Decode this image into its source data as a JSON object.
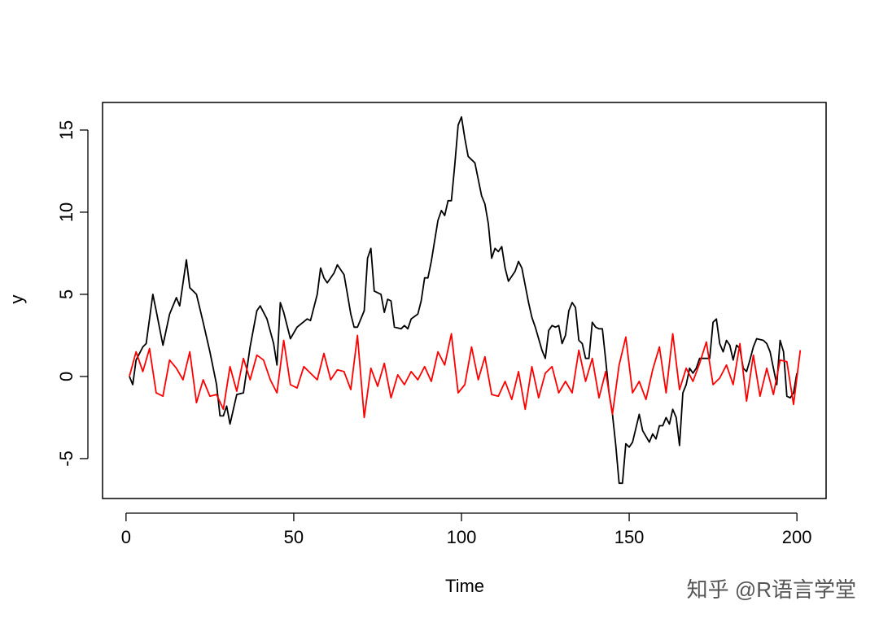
{
  "chart_data": {
    "type": "line",
    "xlabel": "Time",
    "ylabel": "y",
    "annotation": "知乎 @R语言学堂",
    "xlim": [
      -7,
      208.7
    ],
    "ylim": [
      -7.43,
      16.68
    ],
    "xticks": [
      0,
      50,
      100,
      150,
      200
    ],
    "yticks": [
      -5,
      0,
      5,
      10,
      15
    ],
    "series": [
      {
        "color": "#000000",
        "x": [
          1,
          2,
          3,
          5,
          6,
          8,
          9,
          11,
          13,
          15,
          16,
          18,
          19,
          21,
          23,
          25,
          27,
          28,
          29,
          30,
          31,
          33,
          35,
          37,
          39,
          40,
          42,
          44,
          45,
          46,
          47,
          49,
          51,
          54,
          55,
          57,
          58,
          59,
          60,
          62,
          63,
          65,
          66,
          67,
          68,
          69,
          71,
          72,
          73,
          74,
          76,
          77,
          78,
          79,
          80,
          82,
          83,
          84,
          85,
          87,
          88,
          89,
          90,
          91,
          93,
          94,
          95,
          96,
          97,
          98,
          99,
          100,
          101,
          102,
          104,
          105,
          106,
          107,
          108,
          109,
          110,
          111,
          112,
          113,
          114,
          116,
          117,
          118,
          120,
          121,
          122,
          124,
          125,
          126,
          127,
          128,
          129,
          130,
          131,
          132,
          133,
          134,
          135,
          136,
          137,
          138,
          139,
          140,
          141,
          142,
          143,
          144,
          145,
          146,
          147,
          148,
          149,
          150,
          151,
          153,
          154,
          156,
          157,
          158,
          159,
          160,
          161,
          162,
          163,
          164,
          165,
          166,
          167,
          168,
          169,
          170,
          171,
          174,
          175,
          176,
          177,
          178,
          179,
          180,
          181,
          182,
          183,
          184,
          185,
          186,
          187,
          188,
          190,
          191,
          192,
          193,
          194,
          195,
          196,
          197,
          198,
          199,
          200
        ],
        "values": [
          0,
          -0.5,
          1,
          1.8,
          2,
          5,
          4,
          1.9,
          3.8,
          4.8,
          4.3,
          7.1,
          5.4,
          5,
          3.3,
          1.5,
          -0.5,
          -2.4,
          -2.4,
          -1.8,
          -2.9,
          -1.1,
          -1.0,
          1.8,
          4.0,
          4.3,
          3.5,
          2.0,
          0.7,
          4.5,
          3.9,
          2.3,
          3.0,
          3.5,
          3.4,
          5,
          6.6,
          6.0,
          5.7,
          6.3,
          6.8,
          6.2,
          5.0,
          3.8,
          3.0,
          3.0,
          4.0,
          7.2,
          7.8,
          5.2,
          5.0,
          3.9,
          4.7,
          4.6,
          3.0,
          2.9,
          3.1,
          2.9,
          3.5,
          3.8,
          4.6,
          6.0,
          6.0,
          7.0,
          9.5,
          10.1,
          9.8,
          10.7,
          10.7,
          12.9,
          15.3,
          15.8,
          14.5,
          13.4,
          13.0,
          12.0,
          11.0,
          10.5,
          9.3,
          7.2,
          7.8,
          7.6,
          7.9,
          6.6,
          5.8,
          6.4,
          7.0,
          6.6,
          4.5,
          3.6,
          3.0,
          1.6,
          1.1,
          2.8,
          3.1,
          3.0,
          3.1,
          2.0,
          2.5,
          4.0,
          4.5,
          4.2,
          2.2,
          2.0,
          1.1,
          1.1,
          3.3,
          3.0,
          2.9,
          2.9,
          1.0,
          -1.0,
          -2.3,
          -4.2,
          -6.5,
          -6.5,
          -4.1,
          -4.3,
          -4.0,
          -2.3,
          -3.3,
          -4.0,
          -3.5,
          -3.8,
          -3.0,
          -3.0,
          -2.5,
          -2.9,
          -2.0,
          -2.5,
          -4.2,
          -1.0,
          -0.5,
          0.5,
          0.2,
          0.5,
          1.1,
          1.1,
          3.3,
          3.5,
          2.0,
          1.5,
          2.2,
          1.9,
          1.0,
          1.9,
          1.7,
          0.5,
          0.3,
          1.0,
          1.8,
          2.3,
          2.2,
          2.0,
          1.5,
          0.5,
          -0.5,
          2.2,
          1.5,
          -1.2,
          -1.3,
          -1.0,
          0.2
        ]
      },
      {
        "color": "#ff0000",
        "x": [
          1,
          3,
          5,
          7,
          9,
          11,
          13,
          15,
          17,
          19,
          21,
          23,
          25,
          27,
          29,
          31,
          33,
          35,
          37,
          39,
          41,
          43,
          45,
          47,
          49,
          51,
          53,
          55,
          57,
          59,
          61,
          63,
          65,
          67,
          69,
          71,
          73,
          75,
          77,
          79,
          81,
          83,
          85,
          87,
          89,
          91,
          93,
          95,
          97,
          99,
          101,
          103,
          105,
          107,
          109,
          111,
          113,
          115,
          117,
          119,
          121,
          123,
          125,
          127,
          129,
          131,
          133,
          135,
          137,
          139,
          141,
          143,
          145,
          147,
          149,
          151,
          153,
          155,
          157,
          159,
          161,
          163,
          165,
          167,
          169,
          171,
          173,
          175,
          177,
          179,
          181,
          183,
          185,
          187,
          189,
          191,
          193,
          195,
          197,
          199,
          201
        ],
        "values": [
          0,
          1.5,
          0.3,
          1.7,
          -1.0,
          -1.2,
          1.0,
          0.5,
          -0.2,
          1.5,
          -1.6,
          -0.2,
          -1.2,
          -1.1,
          -2.0,
          0.6,
          -0.9,
          1.1,
          -0.2,
          1.3,
          1.0,
          -0.2,
          -1.0,
          2.2,
          -0.5,
          -0.7,
          0.6,
          0.2,
          -0.2,
          1.4,
          -0.2,
          0.4,
          0.3,
          -0.8,
          2.5,
          -2.5,
          0.5,
          -0.6,
          0.8,
          -1.3,
          0.1,
          -0.5,
          0.3,
          -0.2,
          0.6,
          -0.3,
          1.5,
          0.7,
          2.6,
          -1.0,
          -0.5,
          1.8,
          -0.2,
          1.2,
          -1.1,
          -1.2,
          -0.3,
          -1.4,
          0.3,
          -2.0,
          0.6,
          -1.3,
          0.2,
          0.6,
          -1.0,
          -0.3,
          -1.0,
          1.6,
          -0.3,
          1.1,
          -1.3,
          0.3,
          -2.3,
          0.7,
          2.4,
          -1.0,
          -0.3,
          -1.4,
          0.4,
          1.8,
          -1.0,
          2.6,
          -0.8,
          0.5,
          -0.3,
          0.8,
          2.1,
          -0.5,
          -0.1,
          0.7,
          -0.5,
          2.0,
          -1.5,
          1.3,
          -1.2,
          0.5,
          -1.1,
          1.0,
          0.9,
          -1.7,
          1.6
        ]
      }
    ]
  }
}
